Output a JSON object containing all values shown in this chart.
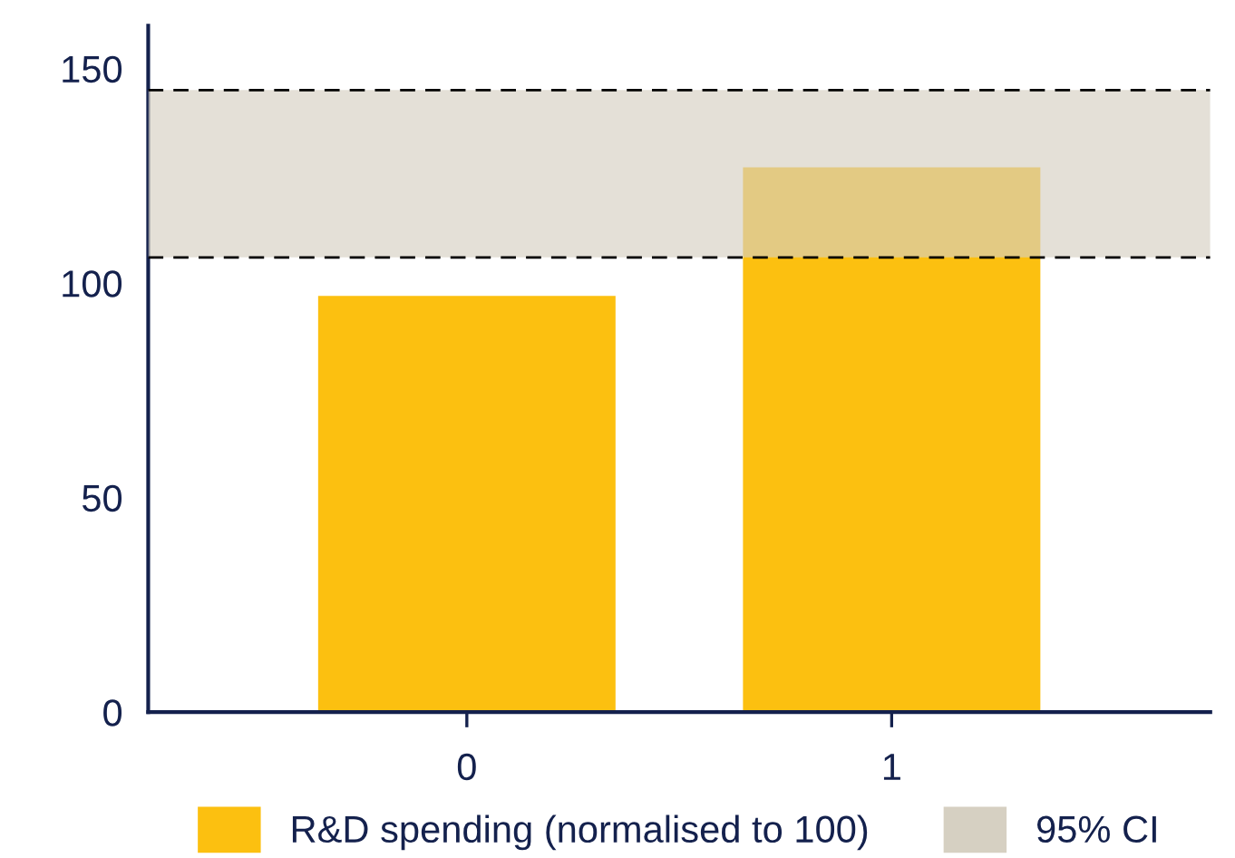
{
  "chart_data": {
    "type": "bar",
    "categories": [
      "0",
      "1"
    ],
    "series": [
      {
        "name": "R&D spending (normalised to 100)",
        "color": "#fcc010",
        "values": [
          97,
          127
        ]
      }
    ],
    "ylim": [
      0,
      160
    ],
    "yticks": [
      0,
      50,
      100,
      150
    ],
    "bands": [
      {
        "axis": "y",
        "from": 106,
        "to": 145,
        "label": "95% CI",
        "color": "#d6d0c2"
      }
    ],
    "ref_lines": [
      {
        "axis": "y",
        "value": 106,
        "label": null,
        "line_style": "dashed",
        "color": "#000000"
      },
      {
        "axis": "y",
        "value": 145,
        "label": null,
        "line_style": "dashed",
        "color": "#000000"
      }
    ],
    "grid": false,
    "legend": "bottom"
  }
}
